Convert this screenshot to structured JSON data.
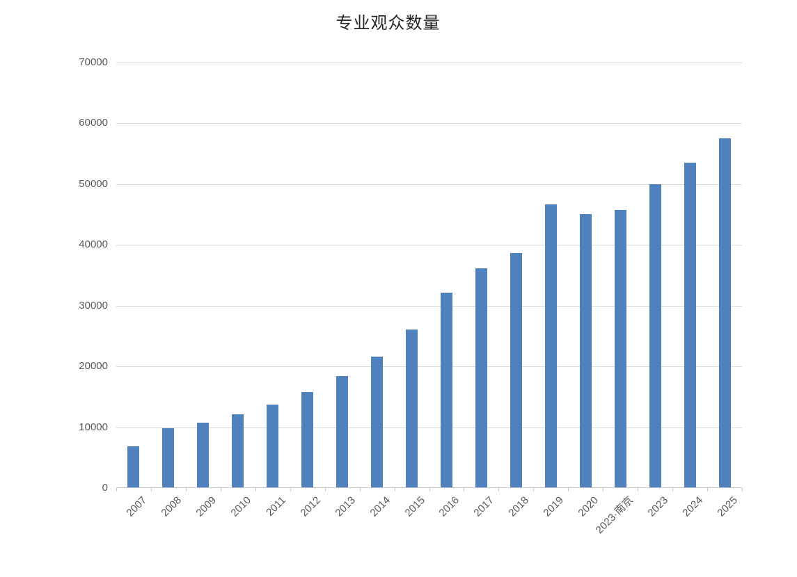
{
  "chart_data": {
    "type": "bar",
    "title": "专业观众数量",
    "categories": [
      "2007",
      "2008",
      "2009",
      "2010",
      "2011",
      "2012",
      "2013",
      "2014",
      "2015",
      "2016",
      "2017",
      "2018",
      "2019",
      "2020",
      "2023·南京",
      "2023",
      "2024",
      "2025"
    ],
    "values": [
      6800,
      9700,
      10600,
      12000,
      13600,
      15700,
      18300,
      21500,
      26000,
      32000,
      36000,
      38600,
      46600,
      45000,
      45600,
      49900,
      53400,
      57400
    ],
    "xlabel": "",
    "ylabel": "",
    "ylim": [
      0,
      70000
    ],
    "yticks": [
      0,
      10000,
      20000,
      30000,
      40000,
      50000,
      60000,
      70000
    ],
    "grid": true,
    "legend": false,
    "colors": {
      "bar": "#4F81BD",
      "gridline": "#D9D9D9",
      "axis_line": "#C9C9C9",
      "tick_label": "#595959",
      "title": "#262626"
    }
  }
}
